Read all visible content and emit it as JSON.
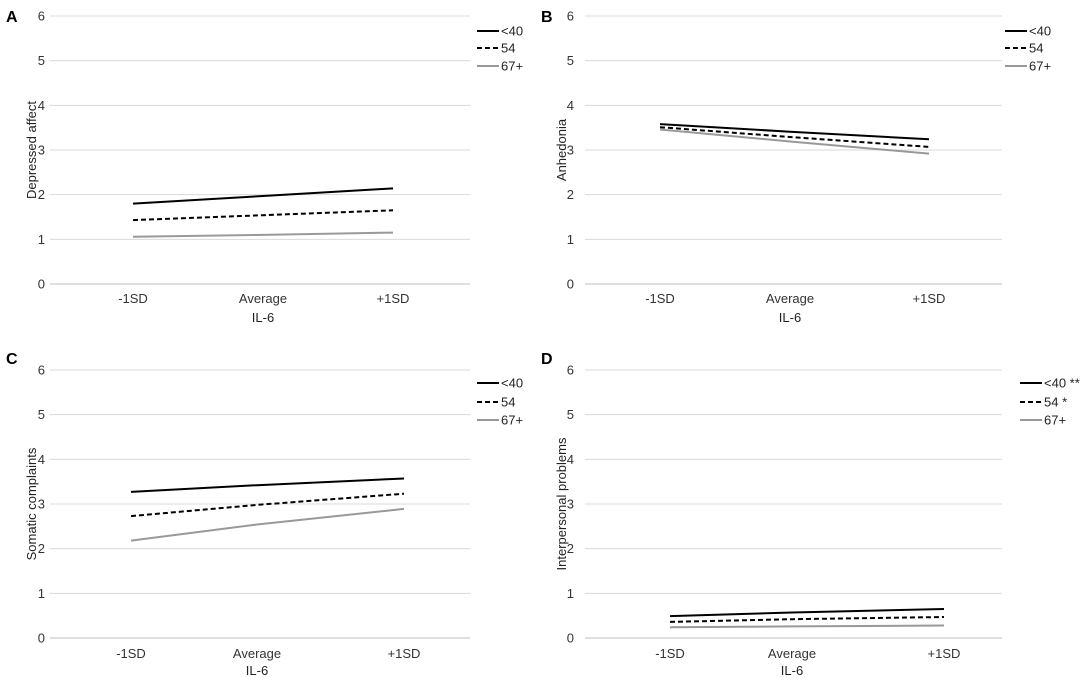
{
  "figure": {
    "shared_x_categories": [
      "-1SD",
      "Average",
      "+1SD"
    ],
    "series_names": [
      "<40",
      "54",
      "67+"
    ],
    "series_colors": [
      "#000000",
      "#000000",
      "#999999"
    ],
    "series_styles": [
      "solid",
      "dashed",
      "solid"
    ]
  },
  "chart_data": [
    {
      "panel": "A",
      "type": "line",
      "title": "",
      "xlabel": "IL-6",
      "ylabel": "Depressed affect",
      "categories": [
        "-1SD",
        "Average",
        "+1SD"
      ],
      "ylim": [
        0,
        6
      ],
      "yticks": [
        "0",
        "1",
        "2",
        "3",
        "4",
        "5",
        "6"
      ],
      "grid": true,
      "legend_position": "top-right",
      "series": [
        {
          "name": "<40",
          "legend_label": "<40",
          "values": [
            1.8,
            1.97,
            2.14
          ]
        },
        {
          "name": "54",
          "legend_label": "54",
          "values": [
            1.43,
            1.54,
            1.65
          ]
        },
        {
          "name": "67+",
          "legend_label": "67+",
          "values": [
            1.06,
            1.1,
            1.15
          ]
        }
      ]
    },
    {
      "panel": "B",
      "type": "line",
      "title": "",
      "xlabel": "IL-6",
      "ylabel": "Anhedonia",
      "categories": [
        "-1SD",
        "Average",
        "+1SD"
      ],
      "ylim": [
        0,
        6
      ],
      "yticks": [
        "0",
        "1",
        "2",
        "3",
        "4",
        "5",
        "6"
      ],
      "grid": true,
      "legend_position": "top-right",
      "series": [
        {
          "name": "<40",
          "legend_label": "<40",
          "values": [
            3.58,
            3.41,
            3.24
          ]
        },
        {
          "name": "54",
          "legend_label": "54",
          "values": [
            3.51,
            3.29,
            3.07
          ]
        },
        {
          "name": "67+",
          "legend_label": "67+",
          "values": [
            3.46,
            3.19,
            2.92
          ]
        }
      ]
    },
    {
      "panel": "C",
      "type": "line",
      "title": "",
      "xlabel": "IL-6",
      "ylabel": "Somatic complaints",
      "categories": [
        "-1SD",
        "Average",
        "+1SD"
      ],
      "ylim": [
        0,
        6
      ],
      "yticks": [
        "0",
        "1",
        "2",
        "3",
        "4",
        "5",
        "6"
      ],
      "grid": true,
      "legend_position": "top-right",
      "series": [
        {
          "name": "<40",
          "legend_label": "<40",
          "values": [
            3.27,
            3.42,
            3.57
          ]
        },
        {
          "name": "54",
          "legend_label": "54",
          "values": [
            2.73,
            2.98,
            3.23
          ]
        },
        {
          "name": "67+",
          "legend_label": "67+",
          "values": [
            2.18,
            2.54,
            2.89
          ]
        }
      ]
    },
    {
      "panel": "D",
      "type": "line",
      "title": "",
      "xlabel": "IL-6",
      "ylabel": "Interpersonal problems",
      "categories": [
        "-1SD",
        "Average",
        "+1SD"
      ],
      "ylim": [
        0,
        6
      ],
      "yticks": [
        "0",
        "1",
        "2",
        "3",
        "4",
        "5",
        "6"
      ],
      "grid": true,
      "legend_position": "top-right",
      "series": [
        {
          "name": "<40",
          "legend_label": "<40 **",
          "values": [
            0.49,
            0.57,
            0.65
          ]
        },
        {
          "name": "54",
          "legend_label": "54 *",
          "values": [
            0.36,
            0.42,
            0.47
          ]
        },
        {
          "name": "67+",
          "legend_label": "67+",
          "values": [
            0.24,
            0.26,
            0.28
          ]
        }
      ]
    }
  ]
}
